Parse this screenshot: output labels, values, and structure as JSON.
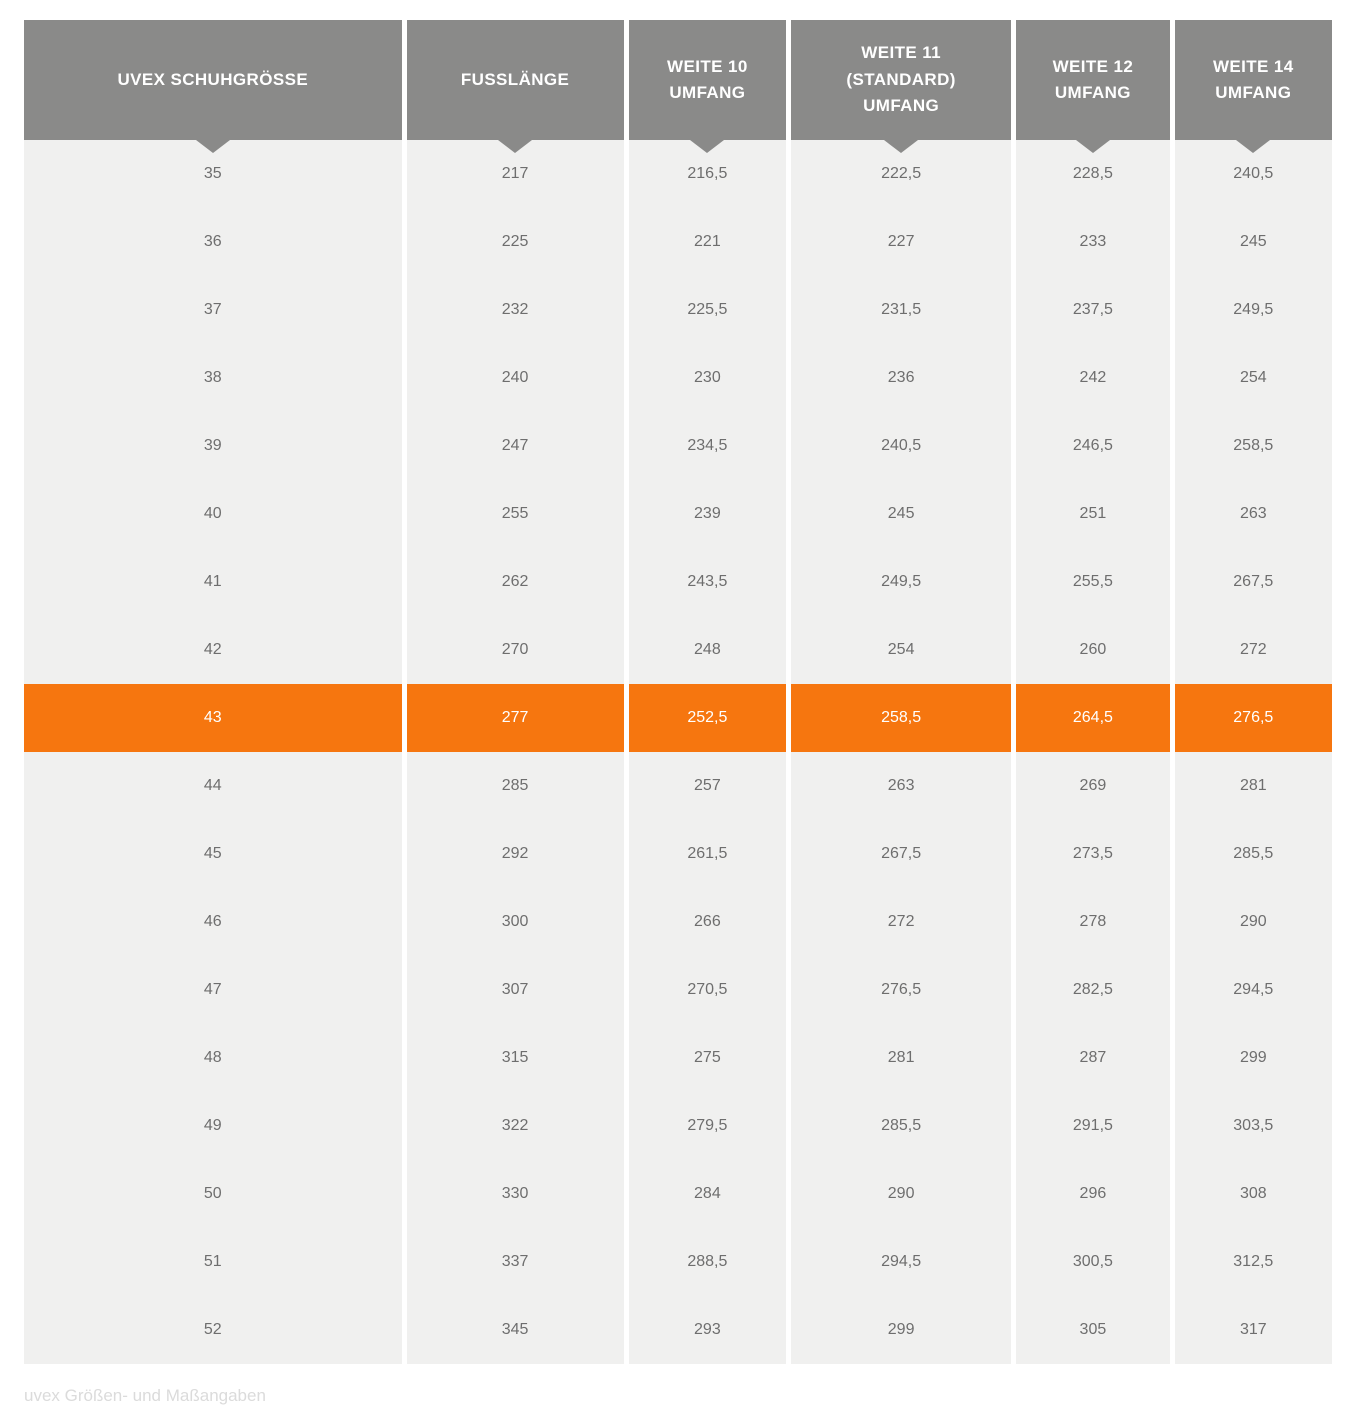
{
  "table": {
    "headers": [
      {
        "label": "UVEX SCHUHGRÖSSE"
      },
      {
        "label": "FUSSLÄNGE"
      },
      {
        "label": "WEITE 10\nUMFANG"
      },
      {
        "label": "WEITE 11\n(STANDARD)\nUMFANG"
      },
      {
        "label": "WEITE 12\nUMFANG"
      },
      {
        "label": "WEITE 14\nUMFANG"
      }
    ],
    "rows": [
      {
        "cells": [
          "35",
          "217",
          "216,5",
          "222,5",
          "228,5",
          "240,5"
        ],
        "highlighted": false
      },
      {
        "cells": [
          "36",
          "225",
          "221",
          "227",
          "233",
          "245"
        ],
        "highlighted": false
      },
      {
        "cells": [
          "37",
          "232",
          "225,5",
          "231,5",
          "237,5",
          "249,5"
        ],
        "highlighted": false
      },
      {
        "cells": [
          "38",
          "240",
          "230",
          "236",
          "242",
          "254"
        ],
        "highlighted": false
      },
      {
        "cells": [
          "39",
          "247",
          "234,5",
          "240,5",
          "246,5",
          "258,5"
        ],
        "highlighted": false
      },
      {
        "cells": [
          "40",
          "255",
          "239",
          "245",
          "251",
          "263"
        ],
        "highlighted": false
      },
      {
        "cells": [
          "41",
          "262",
          "243,5",
          "249,5",
          "255,5",
          "267,5"
        ],
        "highlighted": false
      },
      {
        "cells": [
          "42",
          "270",
          "248",
          "254",
          "260",
          "272"
        ],
        "highlighted": false
      },
      {
        "cells": [
          "43",
          "277",
          "252,5",
          "258,5",
          "264,5",
          "276,5"
        ],
        "highlighted": true
      },
      {
        "cells": [
          "44",
          "285",
          "257",
          "263",
          "269",
          "281"
        ],
        "highlighted": false
      },
      {
        "cells": [
          "45",
          "292",
          "261,5",
          "267,5",
          "273,5",
          "285,5"
        ],
        "highlighted": false
      },
      {
        "cells": [
          "46",
          "300",
          "266",
          "272",
          "278",
          "290"
        ],
        "highlighted": false
      },
      {
        "cells": [
          "47",
          "307",
          "270,5",
          "276,5",
          "282,5",
          "294,5"
        ],
        "highlighted": false
      },
      {
        "cells": [
          "48",
          "315",
          "275",
          "281",
          "287",
          "299"
        ],
        "highlighted": false
      },
      {
        "cells": [
          "49",
          "322",
          "279,5",
          "285,5",
          "291,5",
          "303,5"
        ],
        "highlighted": false
      },
      {
        "cells": [
          "50",
          "330",
          "284",
          "290",
          "296",
          "308"
        ],
        "highlighted": false
      },
      {
        "cells": [
          "51",
          "337",
          "288,5",
          "294,5",
          "300,5",
          "312,5"
        ],
        "highlighted": false
      },
      {
        "cells": [
          "52",
          "345",
          "293",
          "299",
          "305",
          "317"
        ],
        "highlighted": false
      }
    ]
  },
  "caption": "uvex Größen- und Maßangaben",
  "colors": {
    "accent": "#F6760F",
    "header": "#8A8A89",
    "row_bg": "#F0F0EF",
    "text": "#6E6E6E",
    "caption": "#DBDBDB"
  }
}
